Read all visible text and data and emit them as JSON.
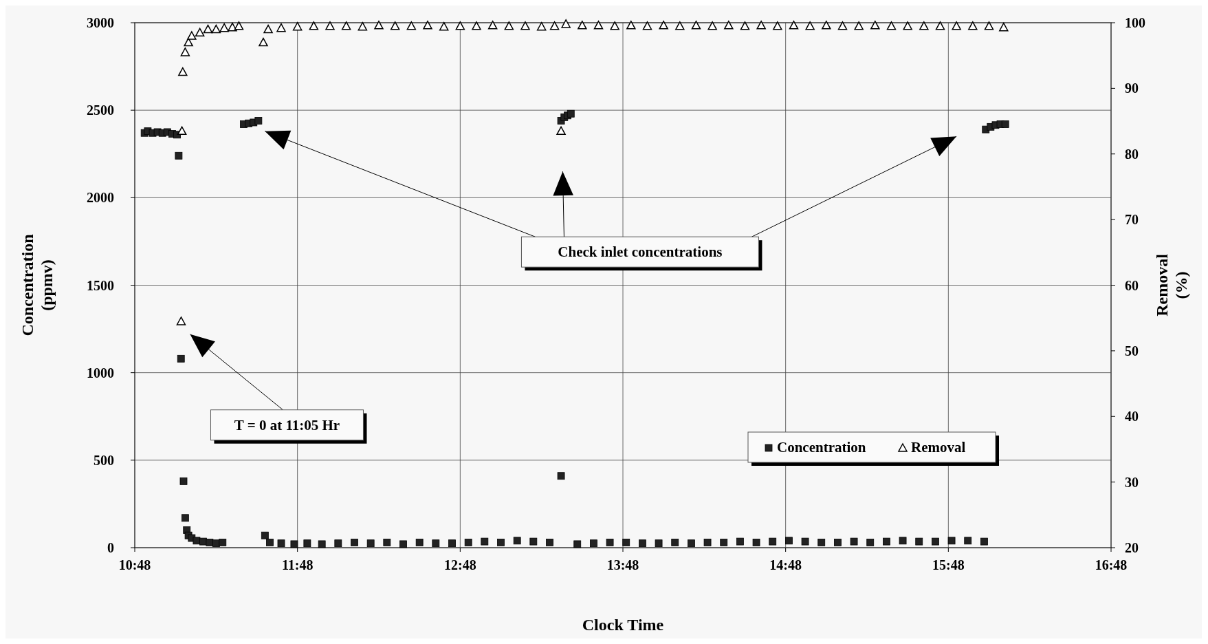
{
  "chart_data": {
    "type": "scatter",
    "xlabel": "Clock Time",
    "ylabel": "Concentration\n(ppmv)",
    "y2label": "Removal\n(%)",
    "xlim": [
      10.8,
      16.8
    ],
    "xticks": [
      {
        "value": 10.8,
        "label": "10:48"
      },
      {
        "value": 11.8,
        "label": "11:48"
      },
      {
        "value": 12.8,
        "label": "12:48"
      },
      {
        "value": 13.8,
        "label": "13:48"
      },
      {
        "value": 14.8,
        "label": "14:48"
      },
      {
        "value": 15.8,
        "label": "15:48"
      },
      {
        "value": 16.8,
        "label": "16:48"
      }
    ],
    "ylim": [
      0,
      3000
    ],
    "yticks": [
      0,
      500,
      1000,
      1500,
      2000,
      2500,
      3000
    ],
    "y2lim": [
      20,
      100
    ],
    "y2ticks": [
      20,
      30,
      40,
      50,
      60,
      70,
      80,
      90,
      100
    ],
    "grid": true,
    "legend": "bottom right",
    "annotations": [
      "T = 0 at 11:05 Hr",
      "Check inlet concentrations"
    ],
    "series": [
      {
        "name": "Concentration",
        "color": "#222222",
        "marker": "square",
        "x": [
          10.86,
          10.88,
          10.91,
          10.94,
          10.97,
          11.0,
          11.03,
          11.06,
          11.07,
          11.084,
          11.1,
          11.11,
          11.12,
          11.13,
          11.15,
          11.18,
          11.22,
          11.26,
          11.3,
          11.34,
          11.47,
          11.5,
          11.53,
          11.56,
          11.6,
          11.63,
          11.7,
          11.78,
          11.86,
          11.95,
          12.05,
          12.15,
          12.25,
          12.35,
          12.45,
          12.55,
          12.65,
          12.75,
          12.85,
          12.95,
          13.05,
          13.15,
          13.25,
          13.35,
          13.42,
          13.42,
          13.44,
          13.46,
          13.48,
          13.52,
          13.62,
          13.72,
          13.82,
          13.92,
          14.02,
          14.12,
          14.22,
          14.32,
          14.42,
          14.52,
          14.62,
          14.72,
          14.82,
          14.92,
          15.02,
          15.12,
          15.22,
          15.32,
          15.42,
          15.52,
          15.62,
          15.72,
          15.82,
          15.92,
          16.02,
          16.03,
          16.06,
          16.09,
          16.12,
          16.15
        ],
        "values": [
          2370,
          2380,
          2370,
          2375,
          2370,
          2375,
          2365,
          2360,
          2240,
          1080,
          380,
          170,
          100,
          70,
          55,
          40,
          35,
          30,
          25,
          30,
          2420,
          2425,
          2430,
          2440,
          70,
          30,
          25,
          20,
          25,
          20,
          25,
          30,
          25,
          30,
          20,
          30,
          25,
          25,
          30,
          35,
          30,
          40,
          35,
          30,
          410,
          2440,
          2460,
          2470,
          2480,
          20,
          25,
          30,
          30,
          25,
          25,
          30,
          25,
          30,
          30,
          35,
          30,
          35,
          40,
          35,
          30,
          30,
          35,
          30,
          35,
          40,
          35,
          35,
          40,
          40,
          35,
          2390,
          2405,
          2415,
          2420,
          2420
        ]
      },
      {
        "name": "Removal",
        "color": "#000000",
        "marker": "triangle",
        "axis": "y2",
        "x": [
          11.085,
          11.09,
          11.095,
          11.11,
          11.13,
          11.15,
          11.2,
          11.25,
          11.3,
          11.35,
          11.4,
          11.44,
          11.59,
          11.62,
          11.7,
          11.8,
          11.9,
          12.0,
          12.1,
          12.2,
          12.3,
          12.4,
          12.5,
          12.6,
          12.7,
          12.8,
          12.9,
          13.0,
          13.1,
          13.2,
          13.3,
          13.38,
          13.42,
          13.45,
          13.55,
          13.65,
          13.75,
          13.85,
          13.95,
          14.05,
          14.15,
          14.25,
          14.35,
          14.45,
          14.55,
          14.65,
          14.75,
          14.85,
          14.95,
          15.05,
          15.15,
          15.25,
          15.35,
          15.45,
          15.55,
          15.65,
          15.75,
          15.85,
          15.95,
          16.05,
          16.14
        ],
        "values": [
          54.5,
          83.5,
          92.5,
          95.5,
          97,
          98,
          98.5,
          99,
          99,
          99.2,
          99.3,
          99.5,
          97,
          99,
          99.2,
          99.4,
          99.5,
          99.5,
          99.5,
          99.4,
          99.6,
          99.5,
          99.5,
          99.6,
          99.4,
          99.5,
          99.5,
          99.6,
          99.5,
          99.5,
          99.4,
          99.5,
          83.5,
          99.8,
          99.6,
          99.6,
          99.5,
          99.6,
          99.5,
          99.6,
          99.5,
          99.6,
          99.5,
          99.6,
          99.5,
          99.6,
          99.5,
          99.6,
          99.5,
          99.6,
          99.5,
          99.5,
          99.6,
          99.5,
          99.5,
          99.5,
          99.5,
          99.5,
          99.5,
          99.5,
          99.3
        ]
      }
    ]
  }
}
